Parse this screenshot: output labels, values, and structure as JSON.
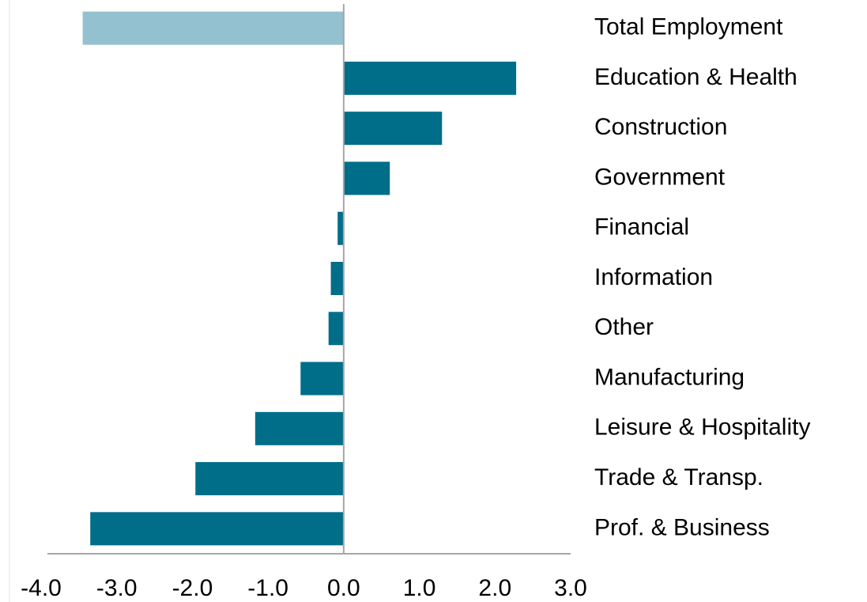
{
  "chart_data": {
    "type": "barh",
    "categories": [
      "Total Employment",
      "Education & Health",
      "Construction",
      "Government",
      "Financial",
      "Information",
      "Other",
      "Manufacturing",
      "Leisure & Hospitality",
      "Trade & Transp.",
      "Prof. & Business"
    ],
    "values": [
      -3.45,
      2.28,
      1.3,
      0.61,
      -0.08,
      -0.17,
      -0.2,
      -0.57,
      -1.17,
      -1.96,
      -3.35
    ],
    "colors": [
      "#93c1cf",
      "#006e89",
      "#006e89",
      "#006e89",
      "#006e89",
      "#006e89",
      "#006e89",
      "#006e89",
      "#006e89",
      "#006e89",
      "#006e89"
    ],
    "xlim": [
      -4,
      3
    ],
    "xticks": [
      {
        "value": -4,
        "label": "-4.0"
      },
      {
        "value": -3,
        "label": "-3.0"
      },
      {
        "value": -2,
        "label": "-2.0"
      },
      {
        "value": -1,
        "label": "-1.0"
      },
      {
        "value": 0,
        "label": "0.0"
      },
      {
        "value": 1,
        "label": "1.0"
      },
      {
        "value": 2,
        "label": "2.0"
      },
      {
        "value": 3,
        "label": "3.0"
      }
    ],
    "grid": false
  }
}
